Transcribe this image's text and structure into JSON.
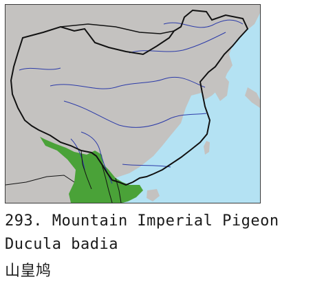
{
  "map": {
    "colors": {
      "sea": "#b4e2f3",
      "land": "#c4c2c0",
      "range": "#4aa238",
      "river": "#2b3aa8",
      "border": "#111111"
    }
  },
  "caption": {
    "title": "293. Mountain Imperial Pigeon",
    "scientific_name": "Ducula badia",
    "chinese_name": "山皇鸠"
  }
}
